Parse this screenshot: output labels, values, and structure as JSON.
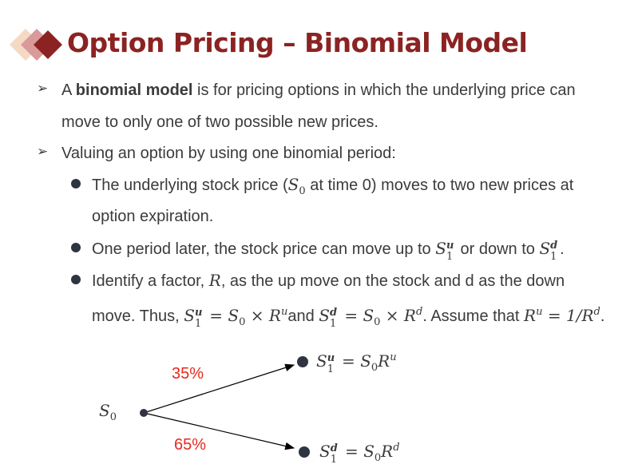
{
  "slide": {
    "title": "Option Pricing – Binomial Model",
    "bullets": [
      {
        "pre": "A ",
        "bold": "binomial model",
        "line1_rest": " is for pricing options in which the underlying price can",
        "line2": "move to only one of two possible new prices."
      },
      {
        "text": "Valuing an option by using one binomial period:"
      }
    ],
    "sub_bullets": [
      {
        "a": "The underlying stock price (",
        "b": " at time 0) moves to two new prices at",
        "line2": "option expiration."
      },
      {
        "a": "One period later, the stock price can move up to ",
        "b": " or down to ",
        "c": "."
      },
      {
        "a": "Identify a factor, ",
        "factor": "R",
        "b": ", as the up move on the stock and d as the down",
        "line2_a": "move. Thus, ",
        "line2_b": "and ",
        "line2_c": ". Assume that "
      }
    ],
    "math": {
      "S": "S",
      "R": "R",
      "zero": "0",
      "one": "1",
      "u": "u",
      "d": "d",
      "eq": " = ",
      "times": " × ",
      "one_over": "1/"
    },
    "diagram": {
      "up_prob": "35%",
      "down_prob": "65%",
      "start": "S",
      "start_sub": "0"
    },
    "colors": {
      "title": "#8b2323",
      "prob": "#e8281c",
      "text": "#3b3b3b"
    },
    "icons": [
      "diamond-logo-icon",
      "arrow-bullet-icon",
      "round-bullet-icon"
    ]
  }
}
